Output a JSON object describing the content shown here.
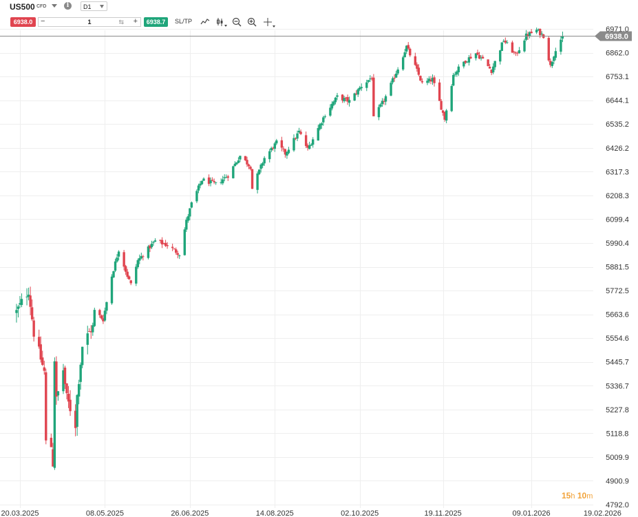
{
  "header": {
    "symbol": "US500",
    "symbol_tag": "CFD",
    "timeframe": "D1",
    "info_icon": "info-icon"
  },
  "trade_bar": {
    "sell_price": "6938.0",
    "quantity": "1",
    "buy_price": "6938.7",
    "sltp_label": "SL/TP",
    "icons": [
      "line-chart-icon",
      "candlestick-icon",
      "zoom-out-icon",
      "zoom-in-icon",
      "crosshair-icon"
    ]
  },
  "colors": {
    "up": "#1fa57a",
    "down": "#e0444f",
    "grid": "#eeeeee",
    "price_line": "#8a8a8a",
    "timer": "#f2a33a"
  },
  "timer": {
    "hours": "15",
    "h_unit": "h",
    "minutes": "10",
    "m_unit": "m"
  },
  "chart_data": {
    "type": "candlestick",
    "current_price": 6938.0,
    "current_price_label": "6938.0",
    "y_ticks": [
      "6971.0",
      "6862.0",
      "6753.1",
      "6644.1",
      "6535.2",
      "6426.2",
      "6317.3",
      "6208.3",
      "6099.4",
      "5990.4",
      "5881.5",
      "5772.5",
      "5663.6",
      "5554.6",
      "5445.7",
      "5336.7",
      "5227.8",
      "5118.8",
      "5009.9",
      "4900.9",
      "4792.0"
    ],
    "ylim": [
      4792.0,
      6971.0
    ],
    "x_ticks": [
      "20.03.2025",
      "08.05.2025",
      "26.06.2025",
      "14.08.2025",
      "02.10.2025",
      "19.11.2025",
      "09.01.2026",
      "19.02.2026"
    ],
    "x_tick_dates": [
      "2025-03-20",
      "2025-05-08",
      "2025-06-26",
      "2025-08-14",
      "2025-10-02",
      "2025-11-19",
      "2026-01-09",
      "2026-02-19"
    ],
    "close_path": [
      [
        "2025-03-18",
        5675
      ],
      [
        "2025-03-25",
        5775
      ],
      [
        "2025-03-28",
        5580
      ],
      [
        "2025-04-03",
        5400
      ],
      [
        "2025-04-04",
        5075
      ],
      [
        "2025-04-07",
        5060
      ],
      [
        "2025-04-08",
        4980
      ],
      [
        "2025-04-09",
        5460
      ],
      [
        "2025-04-10",
        5270
      ],
      [
        "2025-04-14",
        5410
      ],
      [
        "2025-04-16",
        5280
      ],
      [
        "2025-04-21",
        5160
      ],
      [
        "2025-04-22",
        5290
      ],
      [
        "2025-04-25",
        5520
      ],
      [
        "2025-05-01",
        5610
      ],
      [
        "2025-05-02",
        5680
      ],
      [
        "2025-05-07",
        5640
      ],
      [
        "2025-05-12",
        5840
      ],
      [
        "2025-05-16",
        5960
      ],
      [
        "2025-05-21",
        5840
      ],
      [
        "2025-05-23",
        5800
      ],
      [
        "2025-05-27",
        5910
      ],
      [
        "2025-06-06",
        6000
      ],
      [
        "2025-06-13",
        5980
      ],
      [
        "2025-06-20",
        5940
      ],
      [
        "2025-06-24",
        6090
      ],
      [
        "2025-06-27",
        6170
      ],
      [
        "2025-07-03",
        6280
      ],
      [
        "2025-07-11",
        6260
      ],
      [
        "2025-07-18",
        6300
      ],
      [
        "2025-07-25",
        6390
      ],
      [
        "2025-07-31",
        6340
      ],
      [
        "2025-08-01",
        6240
      ],
      [
        "2025-08-08",
        6380
      ],
      [
        "2025-08-15",
        6450
      ],
      [
        "2025-08-20",
        6400
      ],
      [
        "2025-08-28",
        6500
      ],
      [
        "2025-09-02",
        6420
      ],
      [
        "2025-09-12",
        6580
      ],
      [
        "2025-09-19",
        6660
      ],
      [
        "2025-09-26",
        6640
      ],
      [
        "2025-10-03",
        6710
      ],
      [
        "2025-10-09",
        6750
      ],
      [
        "2025-10-10",
        6560
      ],
      [
        "2025-10-17",
        6660
      ],
      [
        "2025-10-24",
        6790
      ],
      [
        "2025-10-29",
        6890
      ],
      [
        "2025-11-04",
        6780
      ],
      [
        "2025-11-07",
        6720
      ],
      [
        "2025-11-13",
        6740
      ],
      [
        "2025-11-20",
        6560
      ],
      [
        "2025-11-25",
        6760
      ],
      [
        "2025-12-01",
        6820
      ],
      [
        "2025-12-08",
        6860
      ],
      [
        "2025-12-12",
        6830
      ],
      [
        "2025-12-17",
        6780
      ],
      [
        "2025-12-24",
        6920
      ],
      [
        "2025-12-31",
        6850
      ],
      [
        "2026-01-06",
        6940
      ],
      [
        "2026-01-12",
        6965
      ],
      [
        "2026-01-16",
        6940
      ],
      [
        "2026-01-20",
        6800
      ],
      [
        "2026-01-23",
        6880
      ],
      [
        "2026-01-27",
        6938
      ]
    ]
  }
}
